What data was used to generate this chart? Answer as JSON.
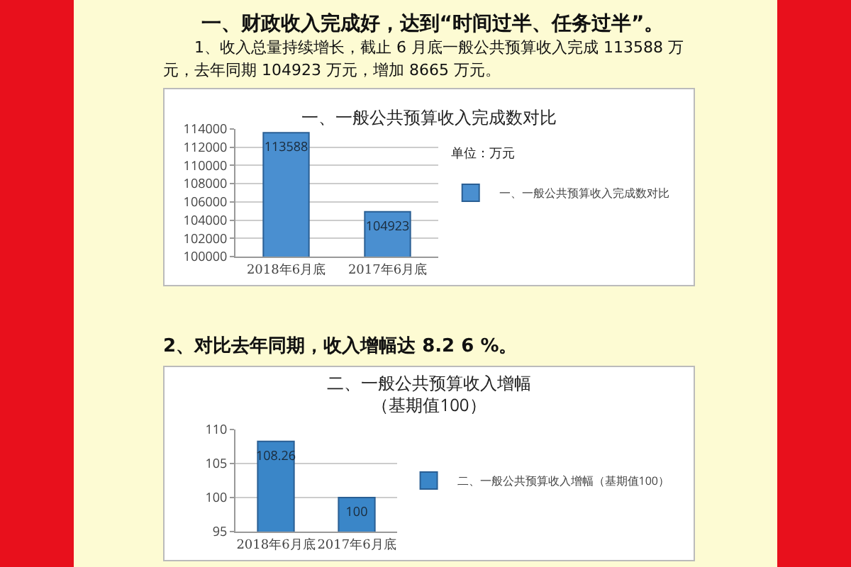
{
  "chart_data": [
    {
      "type": "bar",
      "title": "一、一般公共预算收入完成数对比",
      "annotations": [
        "一、财政收入完成好，达到“时间过半、任务过半”。",
        "1、收入总量持续增长，截止 6 月底一般公共预算收入完成 113588 万元，去年同期 104923 万元，增加 8665 万元。",
        "单位：万元"
      ],
      "categories": [
        "2018年6月底",
        "2017年6月底"
      ],
      "series": [
        {
          "name": "一、一般公共预算收入完成数对比",
          "color": "#4a8fd0",
          "values": [
            113588,
            104923
          ]
        }
      ],
      "ylim": [
        100000,
        114000
      ],
      "yticks": [
        100000,
        102000,
        104000,
        106000,
        108000,
        110000,
        112000,
        114000
      ],
      "grid": "y",
      "legend": "right",
      "data_labels": true
    },
    {
      "type": "bar",
      "title": "二、一般公共预算收入增幅（基期值100）",
      "annotations": [
        "2、对比去年同期，收入增幅达 8.2 6 %。"
      ],
      "categories": [
        "2018年6月底",
        "2017年6月底"
      ],
      "series": [
        {
          "name": "二、一般公共预算收入增幅（基期值100）",
          "color": "#3a86c8",
          "values": [
            108.26,
            100
          ]
        }
      ],
      "ylim": [
        95,
        110
      ],
      "yticks": [
        95,
        100,
        105,
        110
      ],
      "grid": "y",
      "legend": "right",
      "data_labels": true
    }
  ]
}
